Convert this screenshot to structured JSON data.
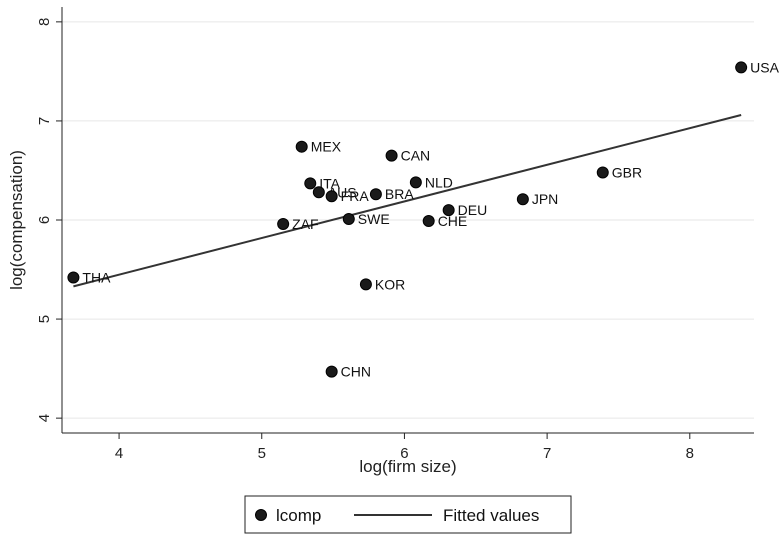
{
  "chart_data": {
    "type": "scatter",
    "xlabel": "log(firm size)",
    "ylabel": "log(compensation)",
    "xlim": [
      3.6,
      8.45
    ],
    "ylim": [
      3.85,
      8.15
    ],
    "xticks": [
      4,
      5,
      6,
      7,
      8
    ],
    "yticks": [
      4,
      5,
      6,
      7,
      8
    ],
    "grid": "horizontal",
    "colors": {
      "background": "#ffffff",
      "plot_background": "#ffffff",
      "grid": "#e6e6e6",
      "marker": "#1a1a1a",
      "line": "#333333"
    },
    "series": [
      {
        "name": "lcomp",
        "kind": "scatter",
        "points": [
          {
            "label": "THA",
            "x": 3.68,
            "y": 5.42
          },
          {
            "label": "ZAF",
            "x": 5.15,
            "y": 5.96
          },
          {
            "label": "MEX",
            "x": 5.28,
            "y": 6.74
          },
          {
            "label": "ITA",
            "x": 5.34,
            "y": 6.37
          },
          {
            "label": "AUS",
            "x": 5.4,
            "y": 6.28
          },
          {
            "label": "FRA",
            "x": 5.49,
            "y": 6.24
          },
          {
            "label": "CHN",
            "x": 5.49,
            "y": 4.47
          },
          {
            "label": "SWE",
            "x": 5.61,
            "y": 6.01
          },
          {
            "label": "KOR",
            "x": 5.73,
            "y": 5.35
          },
          {
            "label": "BRA",
            "x": 5.8,
            "y": 6.26
          },
          {
            "label": "CAN",
            "x": 5.91,
            "y": 6.65
          },
          {
            "label": "NLD",
            "x": 6.08,
            "y": 6.38
          },
          {
            "label": "CHE",
            "x": 6.17,
            "y": 5.99
          },
          {
            "label": "DEU",
            "x": 6.31,
            "y": 6.1
          },
          {
            "label": "JPN",
            "x": 6.83,
            "y": 6.21
          },
          {
            "label": "GBR",
            "x": 7.39,
            "y": 6.48
          },
          {
            "label": "USA",
            "x": 8.36,
            "y": 7.54
          }
        ]
      },
      {
        "name": "Fitted values",
        "kind": "line",
        "x": [
          3.68,
          8.36
        ],
        "y": [
          5.33,
          7.06
        ]
      }
    ],
    "legend": {
      "position": "bottom",
      "items": [
        {
          "label": "lcomp",
          "symbol": "circle"
        },
        {
          "label": "Fitted values",
          "symbol": "line"
        }
      ]
    }
  }
}
